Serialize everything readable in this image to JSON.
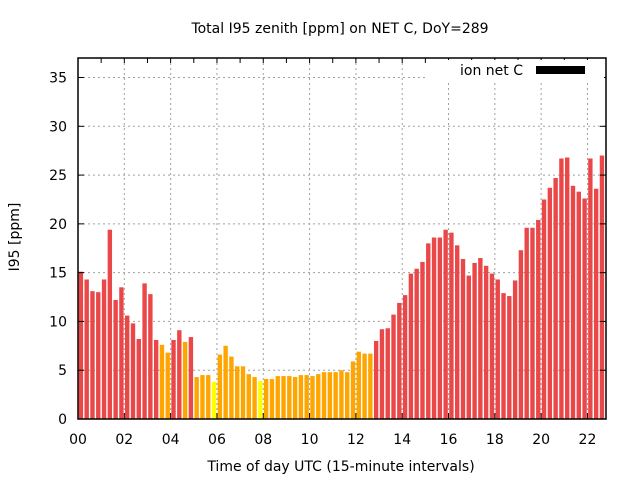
{
  "chart_data": {
    "type": "bar",
    "title": "Total I95 zenith [ppm] on NET C, DoY=289",
    "xlabel": "Time of day UTC (15-minute intervals)",
    "ylabel": "I95 [ppm]",
    "ylim": [
      0,
      37
    ],
    "yticks": [
      0,
      5,
      10,
      15,
      20,
      25,
      30,
      35
    ],
    "xticks": [
      {
        "hour": 0,
        "label": "00"
      },
      {
        "hour": 2,
        "label": "02"
      },
      {
        "hour": 4,
        "label": "04"
      },
      {
        "hour": 6,
        "label": "06"
      },
      {
        "hour": 8,
        "label": "08"
      },
      {
        "hour": 10,
        "label": "10"
      },
      {
        "hour": 12,
        "label": "12"
      },
      {
        "hour": 14,
        "label": "14"
      },
      {
        "hour": 16,
        "label": "16"
      },
      {
        "hour": 18,
        "label": "18"
      },
      {
        "hour": 20,
        "label": "20"
      },
      {
        "hour": 22,
        "label": "22"
      }
    ],
    "xlim_hours": [
      0,
      22.8
    ],
    "interval_minutes": 15,
    "grid": true,
    "legend": {
      "label": "ion net C",
      "placement": "top-right",
      "color": "#000000"
    },
    "color_thresholds": [
      {
        "min": 8,
        "color": "#ea4748"
      },
      {
        "min": 4,
        "color": "#ffa500"
      },
      {
        "min": 0,
        "color": "#ffff00"
      }
    ],
    "values": [
      15.1,
      14.3,
      13.1,
      13.0,
      14.3,
      19.4,
      12.2,
      13.5,
      10.6,
      9.8,
      8.2,
      13.9,
      12.8,
      8.1,
      7.6,
      6.8,
      8.1,
      9.1,
      7.9,
      8.4,
      4.3,
      4.5,
      4.5,
      3.8,
      6.6,
      7.5,
      6.4,
      5.4,
      5.4,
      4.6,
      4.3,
      3.9,
      4.1,
      4.1,
      4.4,
      4.4,
      4.4,
      4.3,
      4.5,
      4.5,
      4.4,
      4.6,
      4.8,
      4.8,
      4.8,
      5.0,
      4.8,
      5.9,
      6.9,
      6.7,
      6.7,
      8.0,
      9.2,
      9.3,
      10.7,
      11.9,
      12.7,
      14.9,
      15.4,
      16.1,
      18.0,
      18.6,
      18.6,
      19.4,
      19.1,
      17.8,
      16.4,
      14.7,
      16.0,
      16.5,
      15.7,
      14.9,
      14.3,
      12.9,
      12.6,
      14.2,
      17.3,
      19.6,
      19.6,
      20.4,
      22.5,
      23.7,
      24.7,
      26.7,
      26.8,
      23.9,
      23.3,
      22.6,
      26.7,
      23.6,
      27.0,
      22.5
    ]
  }
}
